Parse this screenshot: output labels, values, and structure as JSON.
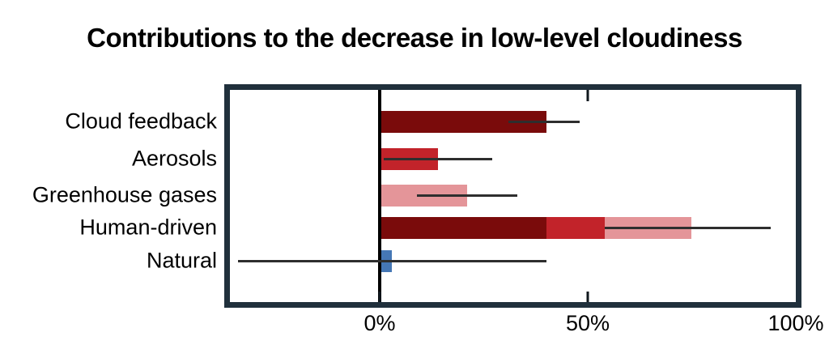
{
  "title": "Contributions to the decrease in low-level cloudiness",
  "colors": {
    "dark_red": "#7a0b0b",
    "red": "#c2232a",
    "pink": "#e49599",
    "blue": "#4577b5",
    "frame": "#20303c",
    "error_line": "#2e2e2e",
    "zero_line": "#000000"
  },
  "chart_data": {
    "type": "bar",
    "orientation": "horizontal",
    "title": "Contributions to the decrease in low-level cloudiness",
    "xlabel": "",
    "ylabel": "",
    "xlim": [
      -36,
      100
    ],
    "x_unit": "%",
    "x_ticks": [
      {
        "label": "0%",
        "value": 0
      },
      {
        "label": "50%",
        "value": 50
      },
      {
        "label": "100%",
        "value": 100
      }
    ],
    "grid": false,
    "legend": false,
    "categories": [
      "Cloud feedback",
      "Aerosols",
      "Greenhouse gases",
      "Human-driven",
      "Natural"
    ],
    "rows": [
      {
        "label": "Cloud feedback",
        "segments": [
          {
            "name": "cloud-feedback",
            "value": 40,
            "color": "#7a0b0b"
          }
        ],
        "total": 40,
        "error": {
          "low": 31,
          "high": 48
        }
      },
      {
        "label": "Aerosols",
        "segments": [
          {
            "name": "aerosols",
            "value": 14,
            "color": "#c2232a"
          }
        ],
        "total": 14,
        "error": {
          "low": 1,
          "high": 27
        }
      },
      {
        "label": "Greenhouse gases",
        "segments": [
          {
            "name": "greenhouse-gases",
            "value": 21,
            "color": "#e49599"
          }
        ],
        "total": 21,
        "error": {
          "low": 9,
          "high": 33
        }
      },
      {
        "label": "Human-driven",
        "segments": [
          {
            "name": "cloud-feedback",
            "value": 40,
            "color": "#7a0b0b"
          },
          {
            "name": "aerosols",
            "value": 14,
            "color": "#c2232a"
          },
          {
            "name": "greenhouse-gases",
            "value": 21,
            "color": "#e49599"
          }
        ],
        "total": 75,
        "error": {
          "low": 54,
          "high": 94
        }
      },
      {
        "label": "Natural",
        "segments": [
          {
            "name": "natural",
            "value": 3,
            "color": "#4577b5"
          }
        ],
        "total": 3,
        "error": {
          "low": -34,
          "high": 40
        }
      }
    ]
  }
}
